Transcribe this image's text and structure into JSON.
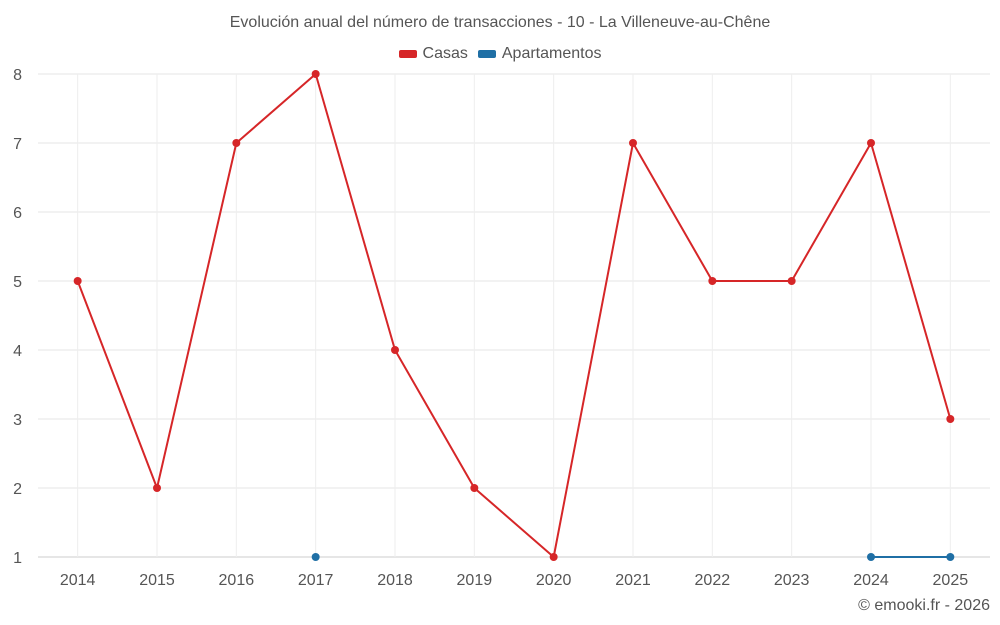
{
  "chart_data": {
    "type": "line",
    "title": "Evolución anual del número de transacciones - 10 - La Villeneuve-au-Chêne",
    "categories": [
      "2014",
      "2015",
      "2016",
      "2017",
      "2018",
      "2019",
      "2020",
      "2021",
      "2022",
      "2023",
      "2024",
      "2025"
    ],
    "series": [
      {
        "name": "Casas",
        "color": "#d62628",
        "values": [
          5,
          2,
          7,
          8,
          4,
          2,
          1,
          7,
          5,
          5,
          7,
          3
        ]
      },
      {
        "name": "Apartamentos",
        "color": "#1f6fa5",
        "values": [
          null,
          null,
          null,
          1,
          null,
          null,
          null,
          null,
          null,
          null,
          1,
          1
        ]
      }
    ],
    "ylim": [
      1,
      8
    ],
    "yticks": [
      1,
      2,
      3,
      4,
      5,
      6,
      7,
      8
    ],
    "grid": true,
    "legend_position": "top-center",
    "xlabel": "",
    "ylabel": ""
  },
  "credit": "© emooki.fr - 2026"
}
